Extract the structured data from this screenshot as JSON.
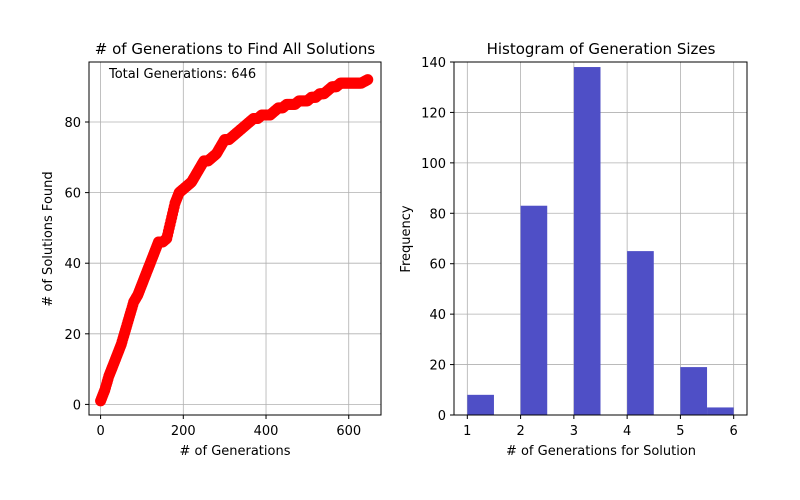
{
  "chart_data": [
    {
      "type": "scatter",
      "title": "# of Generations to Find All Solutions",
      "xlabel": "# of Generations",
      "ylabel": "# of Solutions Found",
      "annotation": "Total Generations: 646",
      "xlim": [
        -28,
        678
      ],
      "ylim": [
        -3,
        97
      ],
      "xticks": [
        0,
        200,
        400,
        600
      ],
      "yticks": [
        0,
        20,
        40,
        60,
        80
      ],
      "grid": true,
      "marker_color": "#ff0000",
      "curve": [
        [
          0,
          1
        ],
        [
          10,
          4
        ],
        [
          20,
          8
        ],
        [
          30,
          11
        ],
        [
          40,
          14
        ],
        [
          50,
          17
        ],
        [
          60,
          21
        ],
        [
          70,
          25
        ],
        [
          80,
          29
        ],
        [
          90,
          31
        ],
        [
          100,
          34
        ],
        [
          110,
          37
        ],
        [
          120,
          40
        ],
        [
          130,
          43
        ],
        [
          140,
          46
        ],
        [
          150,
          46
        ],
        [
          160,
          47
        ],
        [
          170,
          52
        ],
        [
          180,
          57
        ],
        [
          190,
          60
        ],
        [
          200,
          61
        ],
        [
          210,
          62
        ],
        [
          220,
          63
        ],
        [
          230,
          65
        ],
        [
          240,
          67
        ],
        [
          250,
          69
        ],
        [
          260,
          69
        ],
        [
          270,
          70
        ],
        [
          280,
          71
        ],
        [
          290,
          73
        ],
        [
          300,
          75
        ],
        [
          310,
          75
        ],
        [
          320,
          76
        ],
        [
          330,
          77
        ],
        [
          340,
          78
        ],
        [
          350,
          79
        ],
        [
          360,
          80
        ],
        [
          370,
          81
        ],
        [
          380,
          81
        ],
        [
          390,
          82
        ],
        [
          400,
          82
        ],
        [
          410,
          82
        ],
        [
          420,
          83
        ],
        [
          430,
          84
        ],
        [
          440,
          84
        ],
        [
          450,
          85
        ],
        [
          460,
          85
        ],
        [
          470,
          85
        ],
        [
          480,
          86
        ],
        [
          490,
          86
        ],
        [
          500,
          86
        ],
        [
          510,
          87
        ],
        [
          520,
          87
        ],
        [
          530,
          88
        ],
        [
          540,
          88
        ],
        [
          550,
          89
        ],
        [
          560,
          90
        ],
        [
          570,
          90
        ],
        [
          580,
          91
        ],
        [
          590,
          91
        ],
        [
          600,
          91
        ],
        [
          610,
          91
        ],
        [
          620,
          91
        ],
        [
          630,
          91
        ],
        [
          646,
          92
        ]
      ]
    },
    {
      "type": "bar",
      "title": "Histogram of Generation Sizes",
      "xlabel": "# of Generations for Solution",
      "ylabel": "Frequency",
      "xlim": [
        0.75,
        6.25
      ],
      "ylim": [
        0,
        140
      ],
      "xticks": [
        1,
        2,
        3,
        4,
        5,
        6
      ],
      "yticks": [
        0,
        20,
        40,
        60,
        80,
        100,
        120,
        140
      ],
      "grid": true,
      "bar_color": "#4f4fc6",
      "bars": [
        {
          "x0": 1.0,
          "x1": 1.5,
          "value": 8
        },
        {
          "x0": 2.0,
          "x1": 2.5,
          "value": 83
        },
        {
          "x0": 3.0,
          "x1": 3.5,
          "value": 138
        },
        {
          "x0": 4.0,
          "x1": 4.5,
          "value": 65
        },
        {
          "x0": 5.0,
          "x1": 5.5,
          "value": 19
        },
        {
          "x0": 5.5,
          "x1": 6.0,
          "value": 3
        }
      ]
    }
  ]
}
